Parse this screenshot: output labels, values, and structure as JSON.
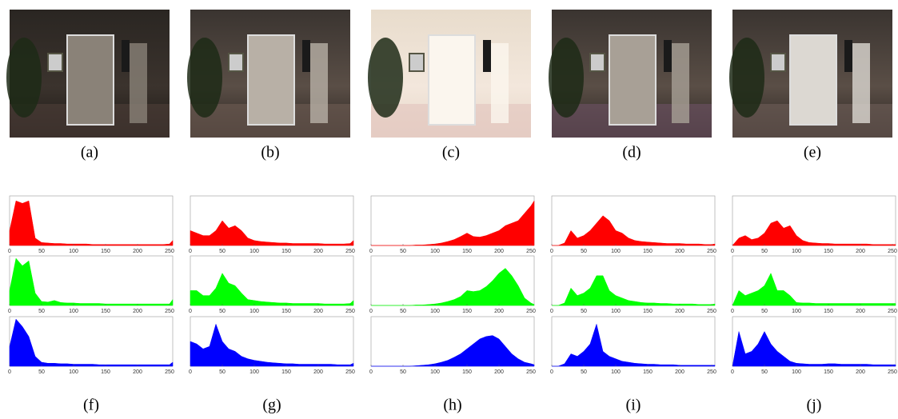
{
  "images": [
    {
      "caption": "(a)"
    },
    {
      "caption": "(b)"
    },
    {
      "caption": "(c)"
    },
    {
      "caption": "(d)"
    },
    {
      "caption": "(e)"
    }
  ],
  "chart_data": [
    {
      "type": "area",
      "caption": "(f)",
      "xlim": [
        0,
        255
      ],
      "ylim": [
        0,
        1
      ],
      "xticks": [
        0,
        50,
        100,
        150,
        200,
        250
      ],
      "x": [
        0,
        10,
        20,
        30,
        40,
        50,
        60,
        70,
        80,
        90,
        100,
        110,
        120,
        130,
        140,
        150,
        160,
        170,
        180,
        190,
        200,
        210,
        220,
        230,
        240,
        250,
        255
      ],
      "series": [
        {
          "color": "#ff0000",
          "values": [
            0.3,
            0.9,
            0.85,
            0.9,
            0.15,
            0.06,
            0.05,
            0.04,
            0.04,
            0.03,
            0.03,
            0.03,
            0.03,
            0.02,
            0.02,
            0.02,
            0.02,
            0.02,
            0.02,
            0.02,
            0.02,
            0.02,
            0.02,
            0.02,
            0.02,
            0.03,
            0.1
          ]
        },
        {
          "color": "#00ff00",
          "values": [
            0.3,
            0.95,
            0.8,
            0.9,
            0.25,
            0.08,
            0.07,
            0.1,
            0.06,
            0.05,
            0.05,
            0.04,
            0.04,
            0.04,
            0.04,
            0.03,
            0.03,
            0.03,
            0.03,
            0.03,
            0.03,
            0.03,
            0.03,
            0.03,
            0.03,
            0.03,
            0.12
          ]
        },
        {
          "color": "#0000ff",
          "values": [
            0.4,
            0.95,
            0.8,
            0.6,
            0.2,
            0.08,
            0.06,
            0.06,
            0.05,
            0.05,
            0.04,
            0.04,
            0.04,
            0.04,
            0.03,
            0.03,
            0.03,
            0.03,
            0.03,
            0.03,
            0.03,
            0.03,
            0.03,
            0.03,
            0.03,
            0.03,
            0.08
          ]
        }
      ]
    },
    {
      "type": "area",
      "caption": "(g)",
      "xlim": [
        0,
        255
      ],
      "ylim": [
        0,
        1
      ],
      "xticks": [
        0,
        50,
        100,
        150,
        200,
        250
      ],
      "x": [
        0,
        10,
        20,
        30,
        40,
        50,
        60,
        70,
        80,
        90,
        100,
        110,
        120,
        130,
        140,
        150,
        160,
        170,
        180,
        190,
        200,
        210,
        220,
        230,
        240,
        250,
        255
      ],
      "series": [
        {
          "color": "#ff0000",
          "values": [
            0.3,
            0.25,
            0.2,
            0.2,
            0.3,
            0.5,
            0.35,
            0.4,
            0.3,
            0.15,
            0.1,
            0.08,
            0.07,
            0.06,
            0.05,
            0.05,
            0.04,
            0.04,
            0.04,
            0.04,
            0.04,
            0.03,
            0.03,
            0.03,
            0.03,
            0.04,
            0.1
          ]
        },
        {
          "color": "#00ff00",
          "values": [
            0.3,
            0.3,
            0.2,
            0.2,
            0.35,
            0.65,
            0.45,
            0.4,
            0.25,
            0.12,
            0.1,
            0.08,
            0.07,
            0.06,
            0.05,
            0.05,
            0.04,
            0.04,
            0.04,
            0.04,
            0.04,
            0.03,
            0.03,
            0.03,
            0.03,
            0.04,
            0.1
          ]
        },
        {
          "color": "#0000ff",
          "values": [
            0.5,
            0.45,
            0.35,
            0.4,
            0.85,
            0.5,
            0.35,
            0.3,
            0.2,
            0.15,
            0.12,
            0.1,
            0.08,
            0.07,
            0.06,
            0.05,
            0.05,
            0.04,
            0.04,
            0.04,
            0.04,
            0.04,
            0.04,
            0.03,
            0.03,
            0.03,
            0.06
          ]
        }
      ]
    },
    {
      "type": "area",
      "caption": "(h)",
      "xlim": [
        0,
        255
      ],
      "ylim": [
        0,
        1
      ],
      "xticks": [
        0,
        50,
        100,
        150,
        200,
        250
      ],
      "x": [
        0,
        10,
        20,
        30,
        40,
        50,
        60,
        70,
        80,
        90,
        100,
        110,
        120,
        130,
        140,
        150,
        160,
        170,
        180,
        190,
        200,
        210,
        220,
        230,
        240,
        250,
        255
      ],
      "series": [
        {
          "color": "#ff0000",
          "values": [
            0,
            0,
            0,
            0,
            0,
            0,
            0,
            0.01,
            0.01,
            0.02,
            0.03,
            0.05,
            0.08,
            0.12,
            0.18,
            0.25,
            0.18,
            0.17,
            0.2,
            0.25,
            0.3,
            0.4,
            0.45,
            0.5,
            0.65,
            0.8,
            0.9
          ]
        },
        {
          "color": "#00ff00",
          "values": [
            0,
            0,
            0,
            0,
            0,
            0,
            0,
            0.01,
            0.01,
            0.02,
            0.03,
            0.05,
            0.08,
            0.12,
            0.18,
            0.3,
            0.28,
            0.3,
            0.38,
            0.5,
            0.65,
            0.75,
            0.6,
            0.4,
            0.15,
            0.05,
            0.02
          ]
        },
        {
          "color": "#0000ff",
          "values": [
            0,
            0,
            0,
            0,
            0,
            0,
            0,
            0.01,
            0.02,
            0.03,
            0.05,
            0.08,
            0.12,
            0.18,
            0.25,
            0.35,
            0.45,
            0.55,
            0.6,
            0.62,
            0.55,
            0.4,
            0.25,
            0.15,
            0.08,
            0.05,
            0.03
          ]
        }
      ]
    },
    {
      "type": "area",
      "caption": "(i)",
      "xlim": [
        0,
        255
      ],
      "ylim": [
        0,
        1
      ],
      "xticks": [
        0,
        50,
        100,
        150,
        200,
        250
      ],
      "x": [
        0,
        10,
        20,
        30,
        40,
        50,
        60,
        70,
        80,
        90,
        100,
        110,
        120,
        130,
        140,
        150,
        160,
        170,
        180,
        190,
        200,
        210,
        220,
        230,
        240,
        250,
        255
      ],
      "series": [
        {
          "color": "#ff0000",
          "values": [
            0,
            0,
            0.05,
            0.3,
            0.15,
            0.2,
            0.3,
            0.45,
            0.6,
            0.5,
            0.3,
            0.25,
            0.15,
            0.1,
            0.08,
            0.07,
            0.06,
            0.05,
            0.04,
            0.04,
            0.04,
            0.03,
            0.03,
            0.03,
            0.02,
            0.02,
            0.03
          ]
        },
        {
          "color": "#00ff00",
          "values": [
            0,
            0,
            0.05,
            0.35,
            0.2,
            0.25,
            0.35,
            0.6,
            0.6,
            0.3,
            0.2,
            0.15,
            0.1,
            0.08,
            0.06,
            0.05,
            0.05,
            0.04,
            0.04,
            0.03,
            0.03,
            0.03,
            0.03,
            0.02,
            0.02,
            0.02,
            0.03
          ]
        },
        {
          "color": "#0000ff",
          "values": [
            0,
            0,
            0.05,
            0.25,
            0.2,
            0.3,
            0.45,
            0.85,
            0.3,
            0.2,
            0.15,
            0.1,
            0.08,
            0.06,
            0.05,
            0.04,
            0.04,
            0.03,
            0.03,
            0.03,
            0.02,
            0.02,
            0.02,
            0.02,
            0.02,
            0.02,
            0.02
          ]
        }
      ]
    },
    {
      "type": "area",
      "caption": "(j)",
      "xlim": [
        0,
        255
      ],
      "ylim": [
        0,
        1
      ],
      "xticks": [
        0,
        50,
        100,
        150,
        200,
        250
      ],
      "x": [
        0,
        10,
        20,
        30,
        40,
        50,
        60,
        70,
        80,
        90,
        100,
        110,
        120,
        130,
        140,
        150,
        160,
        170,
        180,
        190,
        200,
        210,
        220,
        230,
        240,
        250,
        255
      ],
      "series": [
        {
          "color": "#ff0000",
          "values": [
            0,
            0.15,
            0.2,
            0.12,
            0.15,
            0.25,
            0.45,
            0.5,
            0.35,
            0.4,
            0.2,
            0.1,
            0.06,
            0.05,
            0.04,
            0.04,
            0.03,
            0.03,
            0.03,
            0.03,
            0.03,
            0.03,
            0.02,
            0.02,
            0.02,
            0.02,
            0.02
          ]
        },
        {
          "color": "#00ff00",
          "values": [
            0,
            0.3,
            0.2,
            0.25,
            0.3,
            0.4,
            0.65,
            0.3,
            0.3,
            0.2,
            0.06,
            0.05,
            0.05,
            0.04,
            0.04,
            0.04,
            0.04,
            0.04,
            0.04,
            0.04,
            0.04,
            0.04,
            0.04,
            0.04,
            0.04,
            0.04,
            0.04
          ]
        },
        {
          "color": "#0000ff",
          "values": [
            0,
            0.7,
            0.25,
            0.3,
            0.45,
            0.7,
            0.45,
            0.3,
            0.2,
            0.1,
            0.06,
            0.05,
            0.04,
            0.04,
            0.04,
            0.05,
            0.05,
            0.04,
            0.04,
            0.04,
            0.04,
            0.04,
            0.03,
            0.03,
            0.03,
            0.03,
            0.03
          ]
        }
      ]
    }
  ]
}
